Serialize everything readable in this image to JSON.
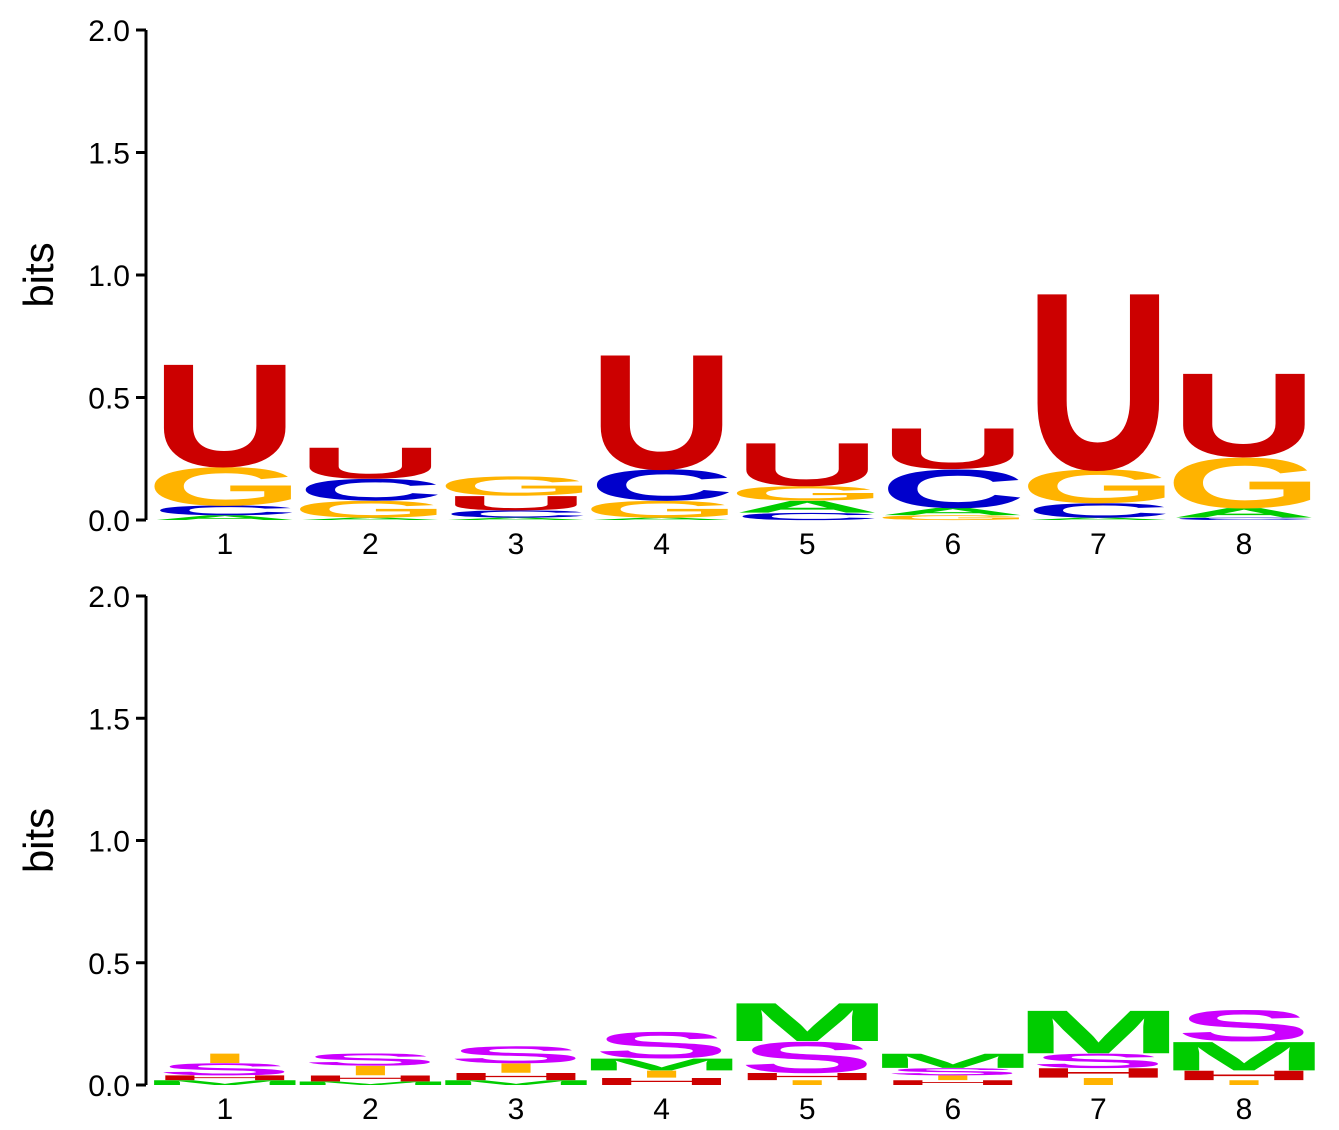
{
  "colors": {
    "A": "#00cc00",
    "C": "#0000cc",
    "G": "#ffb300",
    "U": "#cc0000",
    "T": "#ffb300",
    "S": "#cc00ff",
    "M": "#00cc00",
    "H": "#cc0000",
    "I": "#ffb300",
    "axis": "#000000"
  },
  "chart_data": [
    {
      "type": "sequence-logo",
      "ylabel": "bits",
      "ylim": [
        0,
        2
      ],
      "yticks": [
        "0.0",
        "0.5",
        "1.0",
        "1.5",
        "2.0"
      ],
      "positions": [
        "1",
        "2",
        "3",
        "4",
        "5",
        "6",
        "7",
        "8"
      ],
      "stacks": [
        [
          {
            "letter": "A",
            "bits": 0.02
          },
          {
            "letter": "C",
            "bits": 0.04
          },
          {
            "letter": "G",
            "bits": 0.16
          },
          {
            "letter": "U",
            "bits": 0.43
          }
        ],
        [
          {
            "letter": "A",
            "bits": 0.01
          },
          {
            "letter": "G",
            "bits": 0.07
          },
          {
            "letter": "C",
            "bits": 0.09
          },
          {
            "letter": "U",
            "bits": 0.13
          }
        ],
        [
          {
            "letter": "A",
            "bits": 0.01
          },
          {
            "letter": "C",
            "bits": 0.03
          },
          {
            "letter": "U",
            "bits": 0.06
          },
          {
            "letter": "G",
            "bits": 0.08
          }
        ],
        [
          {
            "letter": "A",
            "bits": 0.01
          },
          {
            "letter": "G",
            "bits": 0.07
          },
          {
            "letter": "C",
            "bits": 0.13
          },
          {
            "letter": "U",
            "bits": 0.48
          }
        ],
        [
          {
            "letter": "C",
            "bits": 0.03
          },
          {
            "letter": "A",
            "bits": 0.05
          },
          {
            "letter": "G",
            "bits": 0.06
          },
          {
            "letter": "U",
            "bits": 0.18
          }
        ],
        [
          {
            "letter": "G",
            "bits": 0.02
          },
          {
            "letter": "A",
            "bits": 0.03
          },
          {
            "letter": "C",
            "bits": 0.16
          },
          {
            "letter": "U",
            "bits": 0.17
          }
        ],
        [
          {
            "letter": "A",
            "bits": 0.01
          },
          {
            "letter": "C",
            "bits": 0.06
          },
          {
            "letter": "G",
            "bits": 0.14
          },
          {
            "letter": "U",
            "bits": 0.74
          }
        ],
        [
          {
            "letter": "C",
            "bits": 0.01
          },
          {
            "letter": "A",
            "bits": 0.04
          },
          {
            "letter": "G",
            "bits": 0.21
          },
          {
            "letter": "U",
            "bits": 0.35
          }
        ]
      ]
    },
    {
      "type": "sequence-logo",
      "ylabel": "bits",
      "ylim": [
        0,
        2
      ],
      "yticks": [
        "0.0",
        "0.5",
        "1.0",
        "1.5",
        "2.0"
      ],
      "positions": [
        "1",
        "2",
        "3",
        "4",
        "5",
        "6",
        "7",
        "8"
      ],
      "stacks": [
        [
          {
            "letter": "M",
            "bits": 0.02
          },
          {
            "letter": "H",
            "bits": 0.02
          },
          {
            "letter": "S",
            "bits": 0.05
          },
          {
            "letter": "I",
            "bits": 0.04
          }
        ],
        [
          {
            "letter": "M",
            "bits": 0.015
          },
          {
            "letter": "H",
            "bits": 0.025
          },
          {
            "letter": "I",
            "bits": 0.04
          },
          {
            "letter": "S",
            "bits": 0.05
          }
        ],
        [
          {
            "letter": "M",
            "bits": 0.02
          },
          {
            "letter": "H",
            "bits": 0.03
          },
          {
            "letter": "I",
            "bits": 0.04
          },
          {
            "letter": "S",
            "bits": 0.07
          }
        ],
        [
          {
            "letter": "H",
            "bits": 0.03
          },
          {
            "letter": "I",
            "bits": 0.03
          },
          {
            "letter": "M",
            "bits": 0.05
          },
          {
            "letter": "S",
            "bits": 0.11
          }
        ],
        [
          {
            "letter": "I",
            "bits": 0.02
          },
          {
            "letter": "H",
            "bits": 0.03
          },
          {
            "letter": "S",
            "bits": 0.13
          },
          {
            "letter": "M",
            "bits": 0.16
          }
        ],
        [
          {
            "letter": "H",
            "bits": 0.02
          },
          {
            "letter": "I",
            "bits": 0.02
          },
          {
            "letter": "S",
            "bits": 0.03
          },
          {
            "letter": "M",
            "bits": 0.06
          }
        ],
        [
          {
            "letter": "I",
            "bits": 0.03
          },
          {
            "letter": "H",
            "bits": 0.04
          },
          {
            "letter": "S",
            "bits": 0.06
          },
          {
            "letter": "M",
            "bits": 0.18
          }
        ],
        [
          {
            "letter": "I",
            "bits": 0.02
          },
          {
            "letter": "H",
            "bits": 0.04
          },
          {
            "letter": "M",
            "bits": 0.12
          },
          {
            "letter": "S",
            "bits": 0.13
          }
        ]
      ]
    }
  ]
}
